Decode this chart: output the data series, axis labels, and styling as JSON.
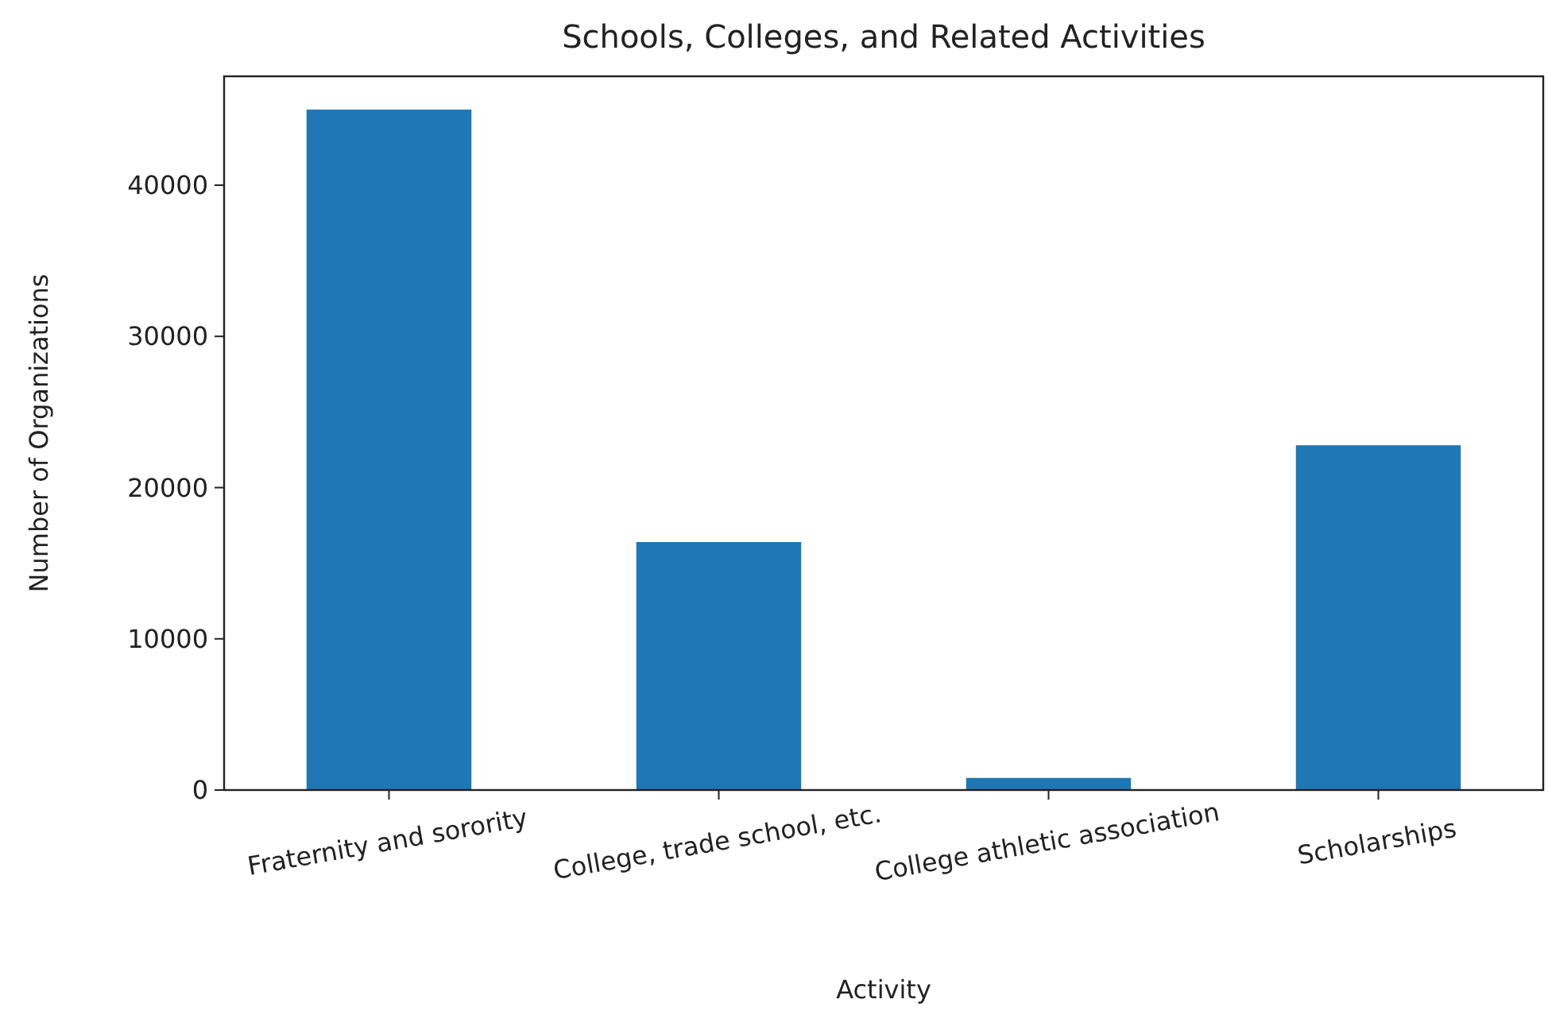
{
  "chart_data": {
    "type": "bar",
    "title": "Schools, Colleges, and Related Activities",
    "xlabel": "Activity",
    "ylabel": "Number of Organizations",
    "categories": [
      "Fraternity and sorority",
      "College, trade school, etc.",
      "College athletic association",
      "Scholarships"
    ],
    "values": [
      45000,
      16400,
      800,
      22800
    ],
    "color": "#1f77b4",
    "ylim": [
      0,
      47200
    ],
    "yticks": [
      0,
      10000,
      20000,
      30000,
      40000
    ],
    "grid": false
  }
}
